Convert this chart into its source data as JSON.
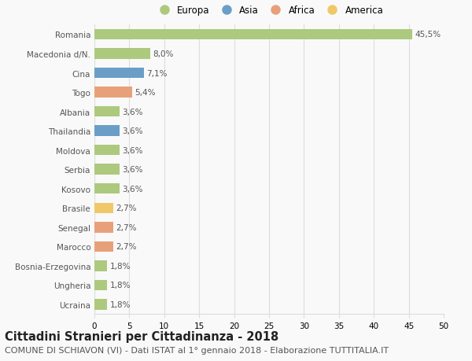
{
  "countries": [
    "Ucraina",
    "Ungheria",
    "Bosnia-Erzegovina",
    "Marocco",
    "Senegal",
    "Brasile",
    "Kosovo",
    "Serbia",
    "Moldova",
    "Thailandia",
    "Albania",
    "Togo",
    "Cina",
    "Macedonia d/N.",
    "Romania"
  ],
  "values": [
    1.8,
    1.8,
    1.8,
    2.7,
    2.7,
    2.7,
    3.6,
    3.6,
    3.6,
    3.6,
    3.6,
    5.4,
    7.1,
    8.0,
    45.5
  ],
  "labels": [
    "1,8%",
    "1,8%",
    "1,8%",
    "2,7%",
    "2,7%",
    "2,7%",
    "3,6%",
    "3,6%",
    "3,6%",
    "3,6%",
    "3,6%",
    "5,4%",
    "7,1%",
    "8,0%",
    "45,5%"
  ],
  "colors": [
    "#adc97e",
    "#adc97e",
    "#adc97e",
    "#e8a07a",
    "#e8a07a",
    "#f0c86a",
    "#adc97e",
    "#adc97e",
    "#adc97e",
    "#6b9ec7",
    "#adc97e",
    "#e8a07a",
    "#6b9ec7",
    "#adc97e",
    "#adc97e"
  ],
  "legend_labels": [
    "Europa",
    "Asia",
    "Africa",
    "America"
  ],
  "legend_colors": [
    "#adc97e",
    "#6b9ec7",
    "#e8a07a",
    "#f0c86a"
  ],
  "xlim": [
    0,
    50
  ],
  "xticks": [
    0,
    5,
    10,
    15,
    20,
    25,
    30,
    35,
    40,
    45,
    50
  ],
  "title": "Cittadini Stranieri per Cittadinanza - 2018",
  "subtitle": "COMUNE DI SCHIAVON (VI) - Dati ISTAT al 1° gennaio 2018 - Elaborazione TUTTITALIA.IT",
  "background_color": "#f9f9f9",
  "grid_color": "#dddddd",
  "bar_height": 0.55,
  "title_fontsize": 10.5,
  "subtitle_fontsize": 8,
  "label_fontsize": 7.5,
  "tick_fontsize": 7.5,
  "legend_fontsize": 8.5
}
